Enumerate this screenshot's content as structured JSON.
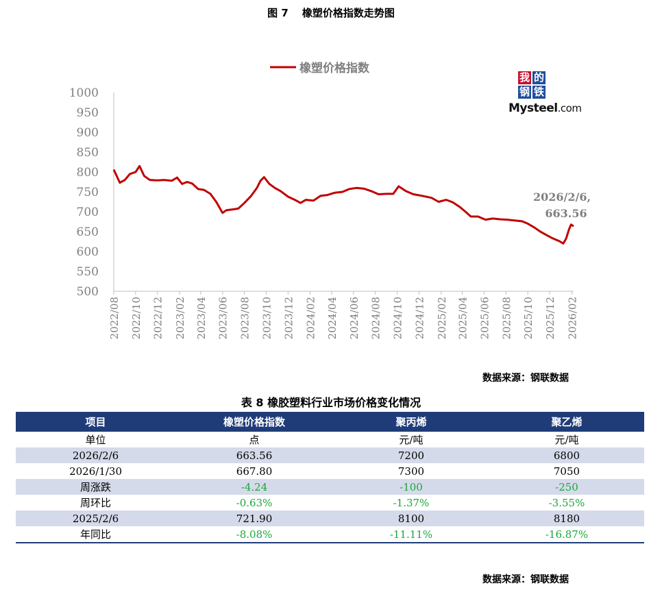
{
  "figure_title": {
    "label": "图 7",
    "text": "橡塑价格指数走势图"
  },
  "logo": {
    "chars": [
      "我",
      "的",
      "钢",
      "铁"
    ],
    "brand": "Mysteel",
    "domain": ".com"
  },
  "chart_data": {
    "type": "line",
    "title": "",
    "xlabel": "",
    "ylabel": "",
    "ylim": [
      500,
      1000
    ],
    "yticks": [
      500,
      550,
      600,
      650,
      700,
      750,
      800,
      850,
      900,
      950,
      1000
    ],
    "xlim": [
      "2022-08-01",
      "2026-02-06"
    ],
    "xtick_labels": [
      "2022/08",
      "2022/10",
      "2022/12",
      "2023/02",
      "2023/04",
      "2023/06",
      "2023/08",
      "2023/10",
      "2023/12",
      "2024/02",
      "2024/04",
      "2024/06",
      "2024/08",
      "2024/10",
      "2024/12",
      "2025/02",
      "2025/04",
      "2025/06",
      "2025/08",
      "2025/10",
      "2025/12",
      "2026/02"
    ],
    "grid": false,
    "legend": "top-center",
    "color": "#c00000",
    "series": [
      {
        "name": "橡塑价格指数",
        "points": [
          [
            "2022-08-01",
            806
          ],
          [
            "2022-08-18",
            773
          ],
          [
            "2022-09-01",
            780
          ],
          [
            "2022-09-15",
            795
          ],
          [
            "2022-10-01",
            800
          ],
          [
            "2022-10-12",
            815
          ],
          [
            "2022-10-25",
            790
          ],
          [
            "2022-11-10",
            780
          ],
          [
            "2022-12-01",
            779
          ],
          [
            "2022-12-20",
            780
          ],
          [
            "2023-01-10",
            778
          ],
          [
            "2023-01-25",
            786
          ],
          [
            "2023-02-08",
            770
          ],
          [
            "2023-02-22",
            775
          ],
          [
            "2023-03-08",
            771
          ],
          [
            "2023-03-25",
            757
          ],
          [
            "2023-04-10",
            755
          ],
          [
            "2023-04-28",
            745
          ],
          [
            "2023-05-15",
            724
          ],
          [
            "2023-06-01",
            697
          ],
          [
            "2023-06-12",
            704
          ],
          [
            "2023-07-01",
            706
          ],
          [
            "2023-07-15",
            708
          ],
          [
            "2023-08-01",
            722
          ],
          [
            "2023-08-20",
            740
          ],
          [
            "2023-09-05",
            760
          ],
          [
            "2023-09-15",
            778
          ],
          [
            "2023-09-25",
            787
          ],
          [
            "2023-10-10",
            770
          ],
          [
            "2023-10-25",
            760
          ],
          [
            "2023-11-10",
            752
          ],
          [
            "2023-12-01",
            738
          ],
          [
            "2023-12-20",
            730
          ],
          [
            "2024-01-05",
            722
          ],
          [
            "2024-01-20",
            730
          ],
          [
            "2024-02-10",
            728
          ],
          [
            "2024-03-01",
            740
          ],
          [
            "2024-03-20",
            742
          ],
          [
            "2024-04-10",
            748
          ],
          [
            "2024-05-01",
            750
          ],
          [
            "2024-05-20",
            757
          ],
          [
            "2024-06-10",
            760
          ],
          [
            "2024-07-01",
            758
          ],
          [
            "2024-07-20",
            752
          ],
          [
            "2024-08-10",
            744
          ],
          [
            "2024-09-01",
            745
          ],
          [
            "2024-09-20",
            745
          ],
          [
            "2024-10-05",
            764
          ],
          [
            "2024-10-25",
            752
          ],
          [
            "2024-11-15",
            744
          ],
          [
            "2024-12-10",
            740
          ],
          [
            "2025-01-05",
            735
          ],
          [
            "2025-01-25",
            725
          ],
          [
            "2025-02-15",
            730
          ],
          [
            "2025-03-05",
            724
          ],
          [
            "2025-03-25",
            712
          ],
          [
            "2025-04-10",
            700
          ],
          [
            "2025-04-25",
            688
          ],
          [
            "2025-05-15",
            688
          ],
          [
            "2025-06-05",
            680
          ],
          [
            "2025-06-25",
            683
          ],
          [
            "2025-07-15",
            681
          ],
          [
            "2025-08-05",
            680
          ],
          [
            "2025-08-25",
            678
          ],
          [
            "2025-09-15",
            676
          ],
          [
            "2025-10-01",
            670
          ],
          [
            "2025-10-20",
            660
          ],
          [
            "2025-11-05",
            650
          ],
          [
            "2025-11-25",
            640
          ],
          [
            "2025-12-10",
            633
          ],
          [
            "2025-12-28",
            626
          ],
          [
            "2026-01-08",
            620
          ],
          [
            "2026-01-16",
            632
          ],
          [
            "2026-01-24",
            655
          ],
          [
            "2026-01-30",
            667.8
          ],
          [
            "2026-02-06",
            663.56
          ]
        ]
      }
    ],
    "annotation": {
      "line1": "2026/2/6,",
      "line2": "663.56"
    }
  },
  "chart_source": "数据来源：钢联数据",
  "table": {
    "title": "表 8 橡胶塑料行业市场价格变化情况",
    "headers": [
      "项目",
      "橡塑价格指数",
      "聚丙烯",
      "聚乙烯"
    ],
    "rows": [
      [
        "单位",
        "点",
        "元/吨",
        "元/吨"
      ],
      [
        "2026/2/6",
        "663.56",
        "7200",
        "6800"
      ],
      [
        "2026/1/30",
        "667.80",
        "7300",
        "7050"
      ],
      [
        "周涨跌",
        "-4.24",
        "-100",
        "-250"
      ],
      [
        "周环比",
        "-0.63%",
        "-1.37%",
        "-3.55%"
      ],
      [
        "2025/2/6",
        "721.90",
        "8100",
        "8180"
      ],
      [
        "年同比",
        "-8.08%",
        "-11.11%",
        "-16.87%"
      ]
    ]
  },
  "table_source": "数据来源：钢联数据",
  "colors": {
    "line": "#c00000",
    "header_bg": "#1f3c78",
    "shade_bg": "#d5daea",
    "negative": "#1aa63a",
    "logo_red": "#c8102e",
    "logo_blue": "#1f4e9c"
  }
}
